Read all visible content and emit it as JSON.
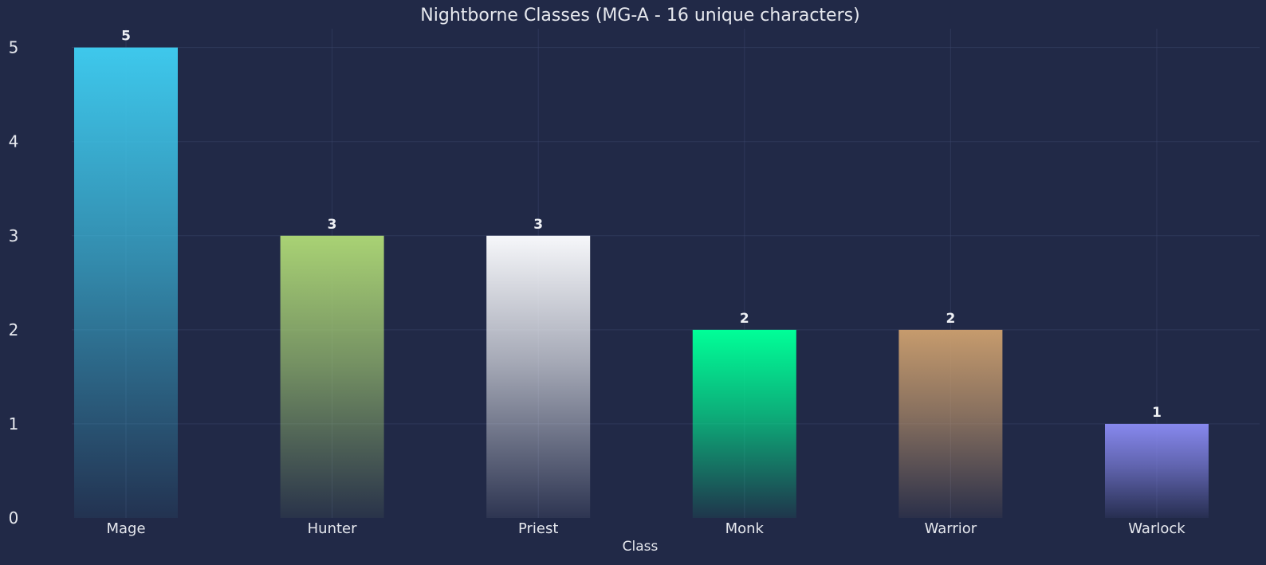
{
  "chart_data": {
    "type": "bar",
    "title": "Nightborne Classes (MG-A - 16 unique characters)",
    "xlabel": "Class",
    "ylabel": "",
    "categories": [
      "Mage",
      "Hunter",
      "Priest",
      "Monk",
      "Warrior",
      "Warlock"
    ],
    "values": [
      5,
      3,
      3,
      2,
      2,
      1
    ],
    "value_labels": [
      "5",
      "3",
      "3",
      "2",
      "2",
      "1"
    ],
    "ylim": [
      0,
      5.2
    ],
    "yticks": [
      0,
      1,
      2,
      3,
      4,
      5
    ],
    "ytick_labels": [
      "0",
      "1",
      "2",
      "3",
      "4",
      "5"
    ],
    "grid": true,
    "legend": "none",
    "colors": [
      "#3ec8ec",
      "#a9d274",
      "#f6f7fa",
      "#00ff98",
      "#c69b6d",
      "#8788ee"
    ]
  }
}
